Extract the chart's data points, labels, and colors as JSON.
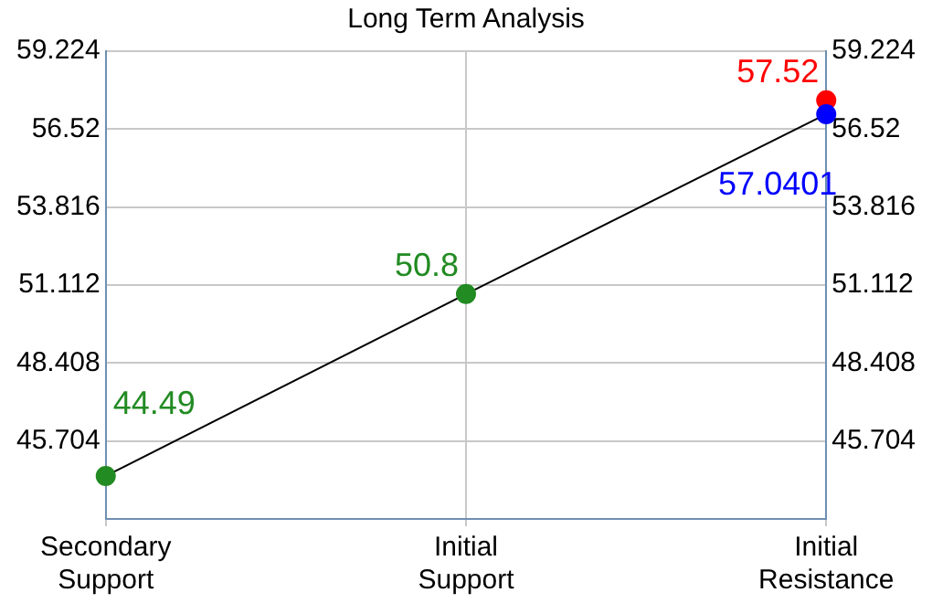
{
  "chart_data": {
    "type": "line",
    "title": "Long Term Analysis",
    "categories": [
      "Secondary Support",
      "Initial Support",
      "Initial Resistance"
    ],
    "series": [
      {
        "color": "#000000",
        "colors": [
          "#228b22",
          "#228b22",
          "#0000ff"
        ],
        "values": [
          44.49,
          50.8,
          57.0401
        ]
      },
      {
        "type": "scatter",
        "color": "#ff0000",
        "values": [
          null,
          null,
          57.52
        ]
      }
    ],
    "ylim": [
      43,
      59.224
    ],
    "yticks": [
      45.704,
      48.408,
      51.112,
      53.816,
      56.52,
      59.224
    ],
    "y2lim": [
      43,
      59.224
    ],
    "y2ticks": [
      45.704,
      48.408,
      51.112,
      53.816,
      56.52,
      59.224
    ],
    "grid": true,
    "marker": "circle",
    "line_style": "solid",
    "data_labels": true
  }
}
